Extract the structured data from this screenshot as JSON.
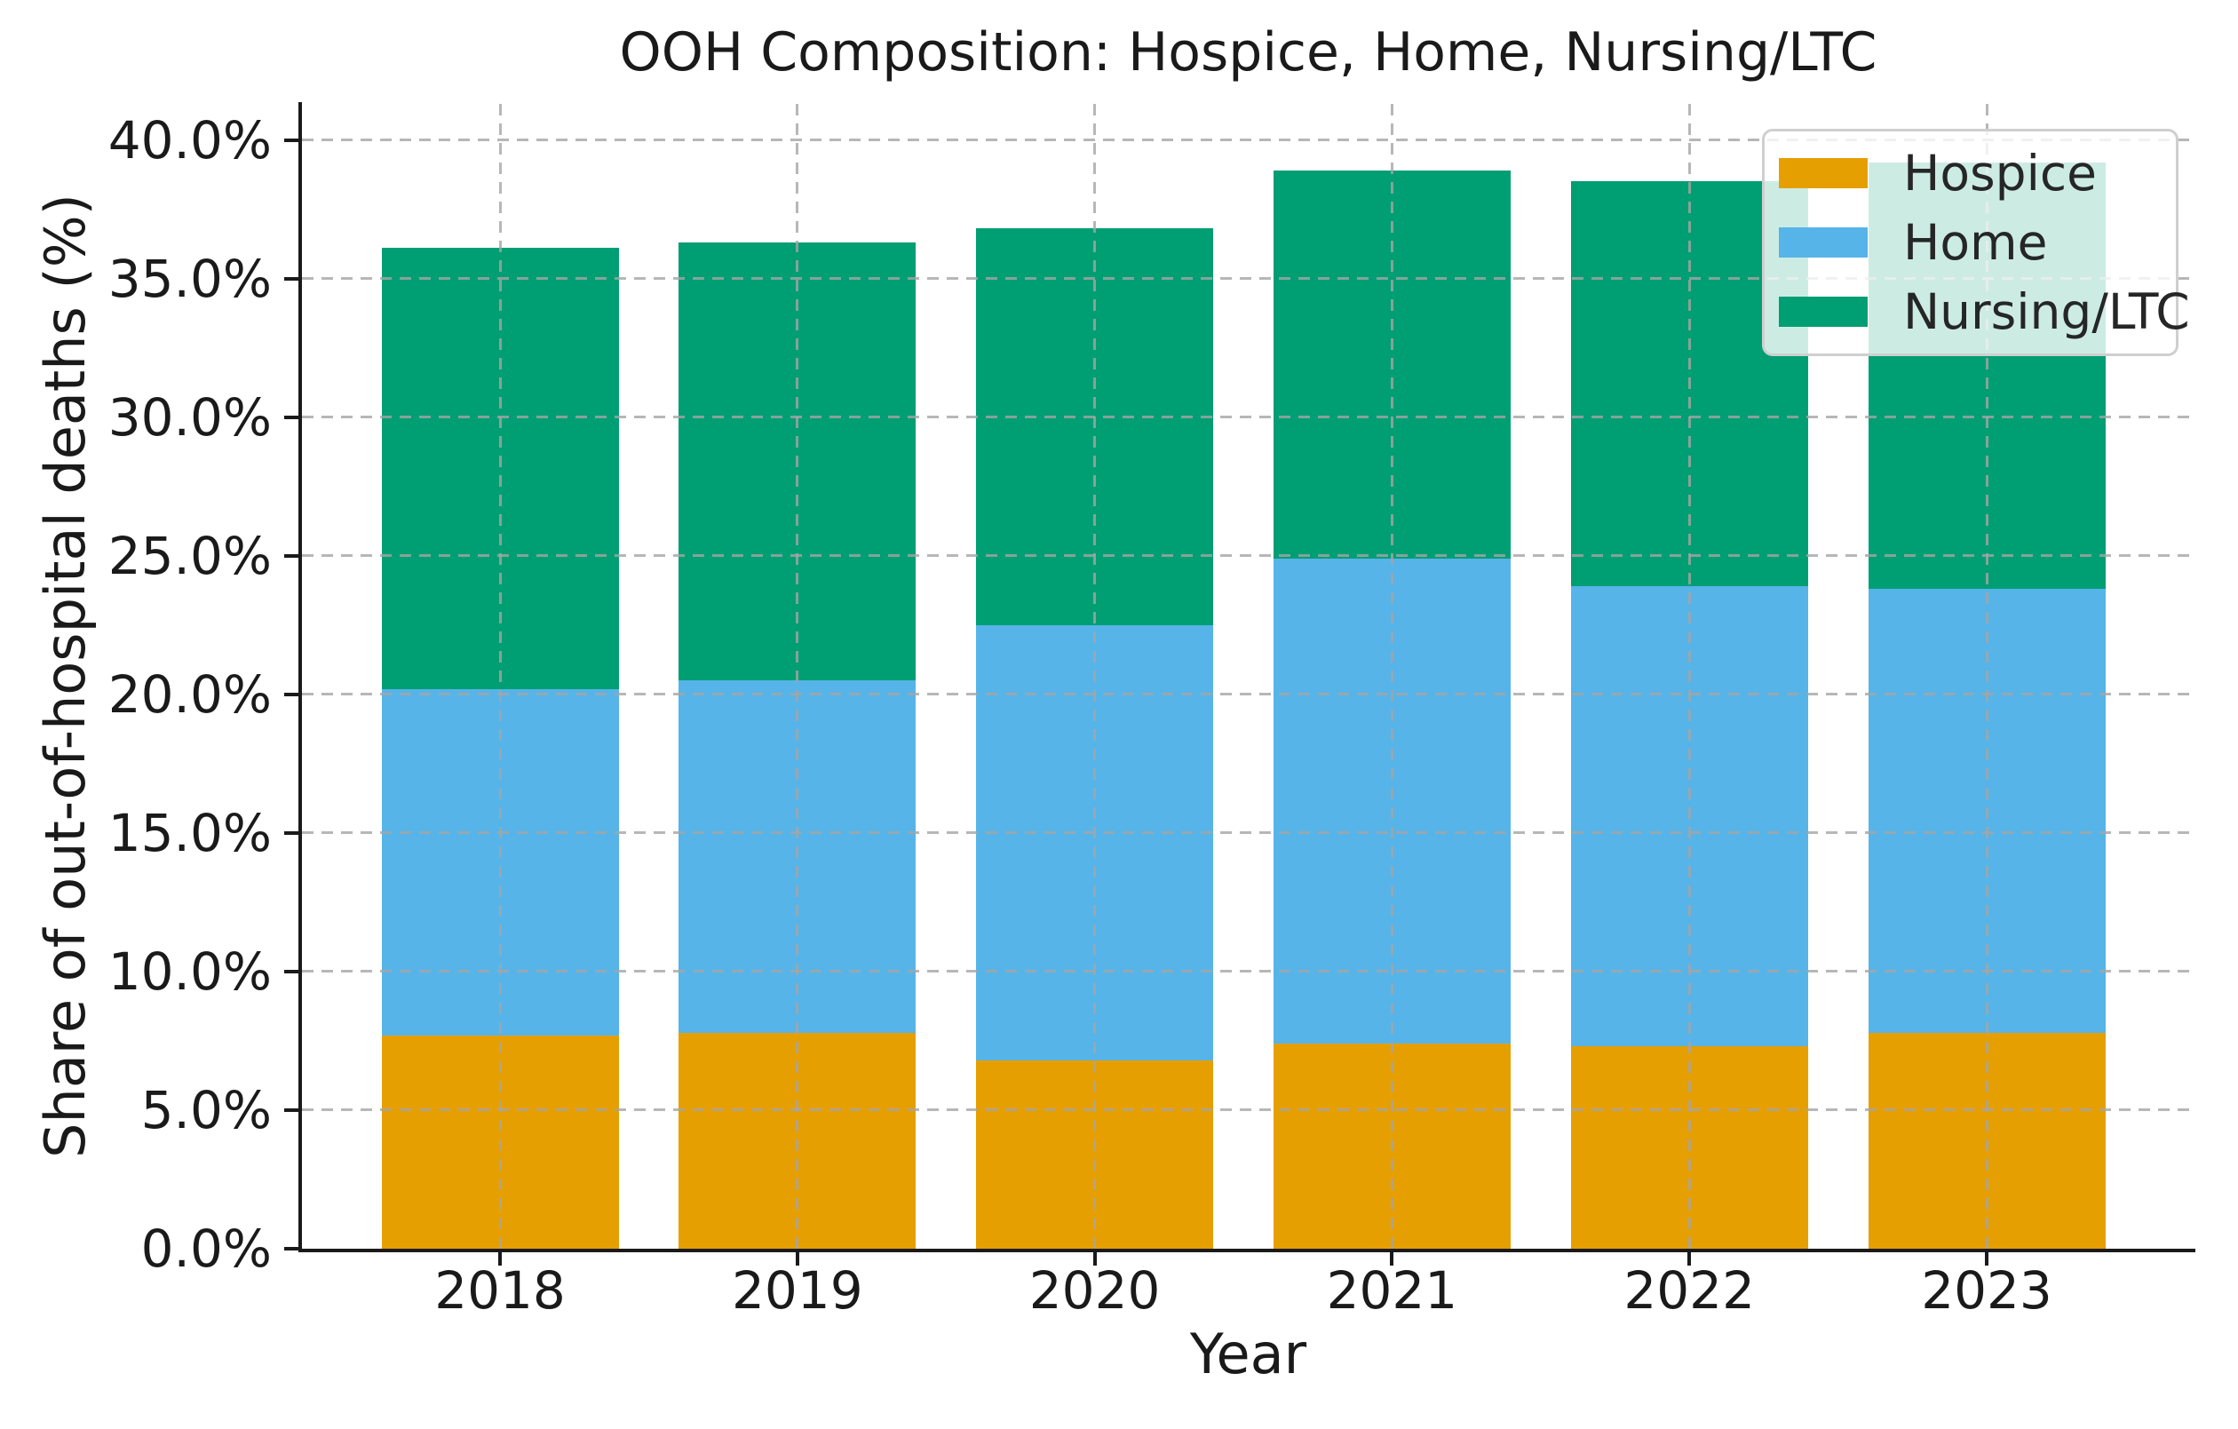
{
  "title": "OOH Composition: Hospice, Home, Nursing/LTC",
  "chart_data": {
    "type": "bar",
    "stacked": true,
    "title": "OOH Composition: Hospice, Home, Nursing/LTC",
    "xlabel": "Year",
    "ylabel": "Share of out-of-hospital deaths (%)",
    "categories": [
      "2018",
      "2019",
      "2020",
      "2021",
      "2022",
      "2023"
    ],
    "series": [
      {
        "name": "Hospice",
        "color": "#E69F00",
        "values": [
          7.7,
          7.8,
          6.8,
          7.4,
          7.3,
          7.8
        ]
      },
      {
        "name": "Home",
        "color": "#56B4E9",
        "values": [
          12.5,
          12.7,
          15.7,
          17.5,
          16.6,
          16.0
        ]
      },
      {
        "name": "Nursing/LTC",
        "color": "#009E73",
        "values": [
          15.9,
          15.8,
          14.3,
          14.0,
          14.6,
          15.4
        ]
      }
    ],
    "stack_totals": [
      36.1,
      36.3,
      36.8,
      38.9,
      38.5,
      39.2
    ],
    "ylim": [
      0,
      41.3
    ],
    "yticks": [
      0,
      5,
      10,
      15,
      20,
      25,
      30,
      35,
      40
    ],
    "ytick_labels": [
      "0.0%",
      "5.0%",
      "10.0%",
      "15.0%",
      "20.0%",
      "25.0%",
      "30.0%",
      "35.0%",
      "40.0%"
    ],
    "grid": "dashed, drawn over bars, horizontal at each 5% and vertical at each year",
    "legend_position": "upper right",
    "legend_entries": [
      "Hospice",
      "Home",
      "Nursing/LTC"
    ]
  }
}
